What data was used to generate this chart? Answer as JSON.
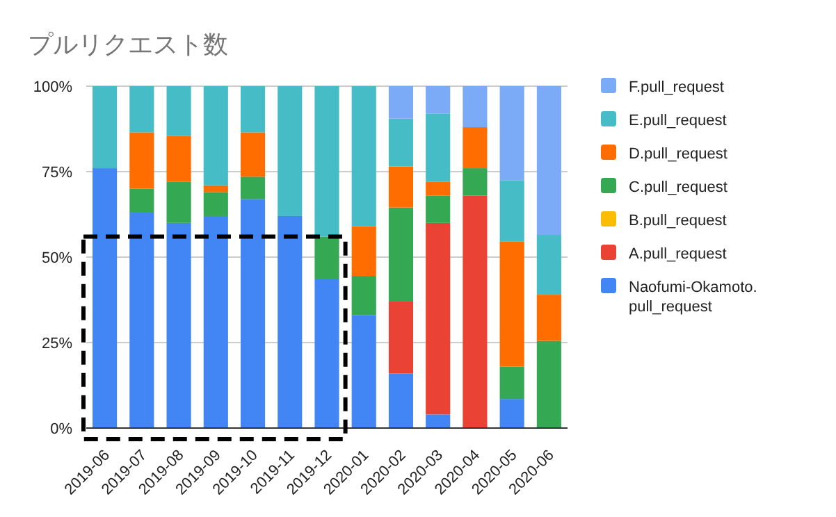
{
  "chart_data": {
    "type": "bar",
    "stacked": true,
    "title": "プルリクエスト数",
    "categories": [
      "2019-06",
      "2019-07",
      "2019-08",
      "2019-09",
      "2019-10",
      "2019-11",
      "2019-12",
      "2020-01",
      "2020-02",
      "2020-03",
      "2020-04",
      "2020-05",
      "2020-06"
    ],
    "series": [
      {
        "name": "Naofumi-Okamoto.\npull_request",
        "color": "#4285f4",
        "values": [
          76,
          63,
          60,
          62,
          67,
          62,
          43.5,
          33,
          16,
          4,
          null,
          8.5,
          null
        ]
      },
      {
        "name": "A.pull_request",
        "color": "#ea4335",
        "values": [
          null,
          null,
          null,
          null,
          null,
          null,
          null,
          null,
          21,
          56,
          68,
          null,
          null
        ]
      },
      {
        "name": "B.pull_request",
        "color": "#fbbc04",
        "values": [
          null,
          null,
          null,
          null,
          null,
          null,
          null,
          null,
          null,
          null,
          null,
          null,
          null
        ]
      },
      {
        "name": "C.pull_request",
        "color": "#34a853",
        "values": [
          null,
          7,
          12,
          7,
          6.5,
          null,
          12.5,
          11.5,
          27.5,
          8,
          8,
          9.5,
          25.5
        ]
      },
      {
        "name": "D.pull_request",
        "color": "#ff6d01",
        "values": [
          null,
          16.5,
          13.5,
          2,
          13,
          null,
          null,
          14.5,
          12,
          4,
          12,
          36.5,
          13.5
        ]
      },
      {
        "name": "E.pull_request",
        "color": "#46bdc6",
        "values": [
          24,
          13.5,
          14.5,
          29,
          13.5,
          38,
          44,
          41,
          14,
          20,
          null,
          18,
          17.5
        ]
      },
      {
        "name": "F.pull_request",
        "color": "#7baaf7",
        "values": [
          null,
          null,
          null,
          null,
          null,
          null,
          null,
          null,
          9.5,
          8,
          12,
          27.5,
          43.5
        ]
      }
    ],
    "ylim": [
      0,
      100
    ],
    "yticks": [
      {
        "value": 0,
        "label": "0%"
      },
      {
        "value": 25,
        "label": "25%"
      },
      {
        "value": 50,
        "label": "50%"
      },
      {
        "value": 75,
        "label": "75%"
      },
      {
        "value": 100,
        "label": "100%"
      }
    ],
    "grid": "y",
    "legend": "right"
  }
}
